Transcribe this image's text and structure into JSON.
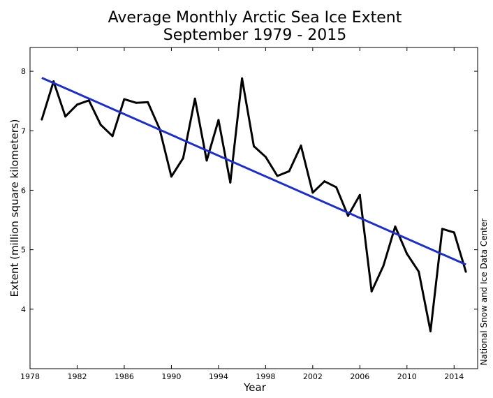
{
  "chart_data": {
    "type": "line",
    "title": "Average Monthly Arctic Sea Ice Extent",
    "subtitle": "September 1979 - 2015",
    "xlabel": "Year",
    "ylabel": "Extent (million square kilometers)",
    "credit": "National Snow and Ice Data Center",
    "xlim": [
      1978,
      2016
    ],
    "ylim": [
      3,
      8.4
    ],
    "xticks": [
      1978,
      1982,
      1986,
      1990,
      1994,
      1998,
      2002,
      2006,
      2010,
      2014
    ],
    "yticks": [
      4,
      5,
      6,
      7,
      8
    ],
    "x": [
      1979,
      1980,
      1981,
      1982,
      1983,
      1984,
      1985,
      1986,
      1987,
      1988,
      1989,
      1990,
      1991,
      1992,
      1993,
      1994,
      1995,
      1996,
      1997,
      1998,
      1999,
      2000,
      2001,
      2002,
      2003,
      2004,
      2005,
      2006,
      2007,
      2008,
      2009,
      2010,
      2011,
      2012,
      2013,
      2014,
      2015
    ],
    "series": [
      {
        "name": "Extent",
        "color": "#000000",
        "values": [
          7.19,
          7.83,
          7.24,
          7.44,
          7.51,
          7.1,
          6.91,
          7.53,
          7.47,
          7.48,
          7.03,
          6.23,
          6.54,
          7.54,
          6.5,
          7.18,
          6.13,
          7.88,
          6.74,
          6.56,
          6.24,
          6.32,
          6.75,
          5.96,
          6.15,
          6.05,
          5.57,
          5.92,
          4.3,
          4.73,
          5.39,
          4.93,
          4.63,
          3.63,
          5.35,
          5.29,
          4.63
        ]
      },
      {
        "name": "Linear trend",
        "color": "#1f2fbf",
        "values": [
          7.89,
          4.75
        ],
        "x": [
          1979,
          2015
        ]
      }
    ]
  }
}
